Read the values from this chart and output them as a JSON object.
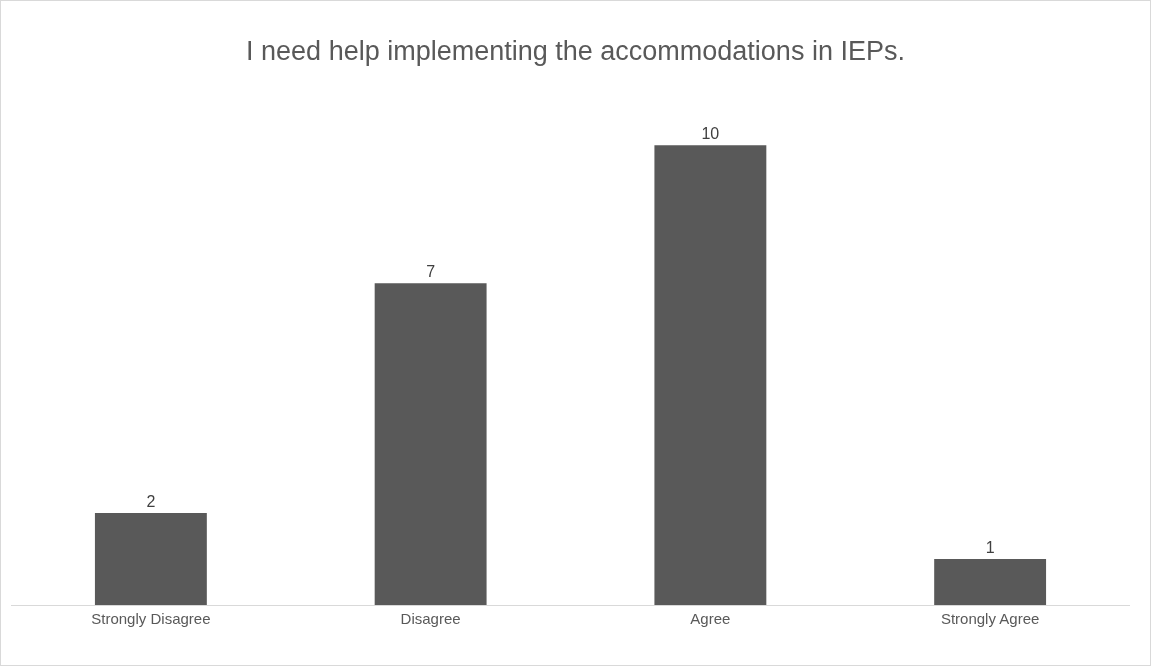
{
  "chart_data": {
    "type": "bar",
    "title": "I need help implementing the accommodations in IEPs.",
    "categories": [
      "Strongly Disagree",
      "Disagree",
      "Agree",
      "Strongly Agree"
    ],
    "values": [
      2,
      7,
      10,
      1
    ],
    "color": "#595959",
    "data_labels": true
  }
}
